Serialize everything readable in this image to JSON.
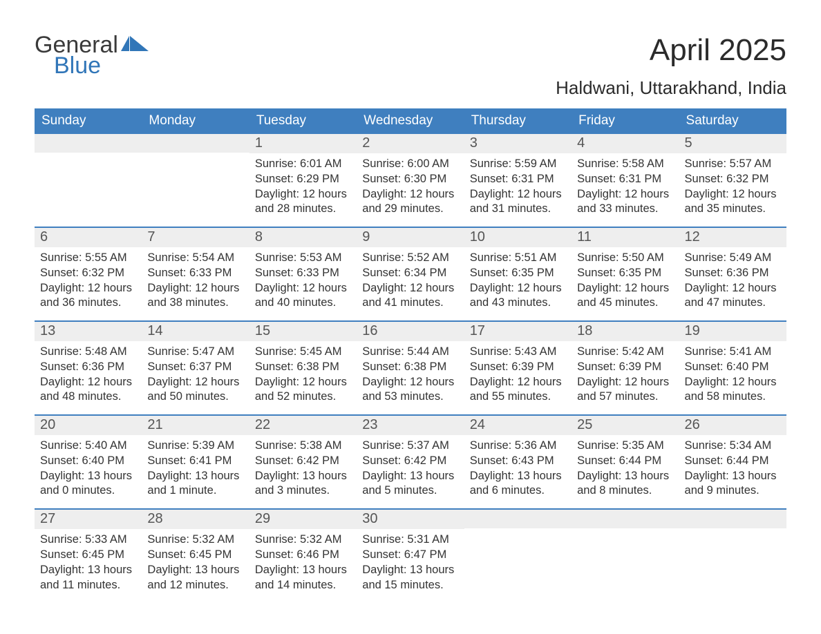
{
  "logo": {
    "word1": "General",
    "word2": "Blue"
  },
  "title": "April 2025",
  "location": "Haldwani, Uttarakhand, India",
  "colors": {
    "header_bg": "#3f7fbf",
    "header_text": "#ffffff",
    "daynum_bg": "#eeeeee",
    "rule": "#3f7fbf",
    "logo_blue": "#3176b8",
    "body_text": "#333333",
    "page_bg": "#ffffff"
  },
  "fonts": {
    "title_size_pt": 33,
    "location_size_pt": 20,
    "header_size_pt": 14,
    "daynum_size_pt": 15,
    "body_size_pt": 12
  },
  "columns": [
    "Sunday",
    "Monday",
    "Tuesday",
    "Wednesday",
    "Thursday",
    "Friday",
    "Saturday"
  ],
  "weeks": [
    [
      {
        "n": "",
        "sunrise": "",
        "sunset": "",
        "daylight": ""
      },
      {
        "n": "",
        "sunrise": "",
        "sunset": "",
        "daylight": ""
      },
      {
        "n": "1",
        "sunrise": "Sunrise: 6:01 AM",
        "sunset": "Sunset: 6:29 PM",
        "daylight": "Daylight: 12 hours and 28 minutes."
      },
      {
        "n": "2",
        "sunrise": "Sunrise: 6:00 AM",
        "sunset": "Sunset: 6:30 PM",
        "daylight": "Daylight: 12 hours and 29 minutes."
      },
      {
        "n": "3",
        "sunrise": "Sunrise: 5:59 AM",
        "sunset": "Sunset: 6:31 PM",
        "daylight": "Daylight: 12 hours and 31 minutes."
      },
      {
        "n": "4",
        "sunrise": "Sunrise: 5:58 AM",
        "sunset": "Sunset: 6:31 PM",
        "daylight": "Daylight: 12 hours and 33 minutes."
      },
      {
        "n": "5",
        "sunrise": "Sunrise: 5:57 AM",
        "sunset": "Sunset: 6:32 PM",
        "daylight": "Daylight: 12 hours and 35 minutes."
      }
    ],
    [
      {
        "n": "6",
        "sunrise": "Sunrise: 5:55 AM",
        "sunset": "Sunset: 6:32 PM",
        "daylight": "Daylight: 12 hours and 36 minutes."
      },
      {
        "n": "7",
        "sunrise": "Sunrise: 5:54 AM",
        "sunset": "Sunset: 6:33 PM",
        "daylight": "Daylight: 12 hours and 38 minutes."
      },
      {
        "n": "8",
        "sunrise": "Sunrise: 5:53 AM",
        "sunset": "Sunset: 6:33 PM",
        "daylight": "Daylight: 12 hours and 40 minutes."
      },
      {
        "n": "9",
        "sunrise": "Sunrise: 5:52 AM",
        "sunset": "Sunset: 6:34 PM",
        "daylight": "Daylight: 12 hours and 41 minutes."
      },
      {
        "n": "10",
        "sunrise": "Sunrise: 5:51 AM",
        "sunset": "Sunset: 6:35 PM",
        "daylight": "Daylight: 12 hours and 43 minutes."
      },
      {
        "n": "11",
        "sunrise": "Sunrise: 5:50 AM",
        "sunset": "Sunset: 6:35 PM",
        "daylight": "Daylight: 12 hours and 45 minutes."
      },
      {
        "n": "12",
        "sunrise": "Sunrise: 5:49 AM",
        "sunset": "Sunset: 6:36 PM",
        "daylight": "Daylight: 12 hours and 47 minutes."
      }
    ],
    [
      {
        "n": "13",
        "sunrise": "Sunrise: 5:48 AM",
        "sunset": "Sunset: 6:36 PM",
        "daylight": "Daylight: 12 hours and 48 minutes."
      },
      {
        "n": "14",
        "sunrise": "Sunrise: 5:47 AM",
        "sunset": "Sunset: 6:37 PM",
        "daylight": "Daylight: 12 hours and 50 minutes."
      },
      {
        "n": "15",
        "sunrise": "Sunrise: 5:45 AM",
        "sunset": "Sunset: 6:38 PM",
        "daylight": "Daylight: 12 hours and 52 minutes."
      },
      {
        "n": "16",
        "sunrise": "Sunrise: 5:44 AM",
        "sunset": "Sunset: 6:38 PM",
        "daylight": "Daylight: 12 hours and 53 minutes."
      },
      {
        "n": "17",
        "sunrise": "Sunrise: 5:43 AM",
        "sunset": "Sunset: 6:39 PM",
        "daylight": "Daylight: 12 hours and 55 minutes."
      },
      {
        "n": "18",
        "sunrise": "Sunrise: 5:42 AM",
        "sunset": "Sunset: 6:39 PM",
        "daylight": "Daylight: 12 hours and 57 minutes."
      },
      {
        "n": "19",
        "sunrise": "Sunrise: 5:41 AM",
        "sunset": "Sunset: 6:40 PM",
        "daylight": "Daylight: 12 hours and 58 minutes."
      }
    ],
    [
      {
        "n": "20",
        "sunrise": "Sunrise: 5:40 AM",
        "sunset": "Sunset: 6:40 PM",
        "daylight": "Daylight: 13 hours and 0 minutes."
      },
      {
        "n": "21",
        "sunrise": "Sunrise: 5:39 AM",
        "sunset": "Sunset: 6:41 PM",
        "daylight": "Daylight: 13 hours and 1 minute."
      },
      {
        "n": "22",
        "sunrise": "Sunrise: 5:38 AM",
        "sunset": "Sunset: 6:42 PM",
        "daylight": "Daylight: 13 hours and 3 minutes."
      },
      {
        "n": "23",
        "sunrise": "Sunrise: 5:37 AM",
        "sunset": "Sunset: 6:42 PM",
        "daylight": "Daylight: 13 hours and 5 minutes."
      },
      {
        "n": "24",
        "sunrise": "Sunrise: 5:36 AM",
        "sunset": "Sunset: 6:43 PM",
        "daylight": "Daylight: 13 hours and 6 minutes."
      },
      {
        "n": "25",
        "sunrise": "Sunrise: 5:35 AM",
        "sunset": "Sunset: 6:44 PM",
        "daylight": "Daylight: 13 hours and 8 minutes."
      },
      {
        "n": "26",
        "sunrise": "Sunrise: 5:34 AM",
        "sunset": "Sunset: 6:44 PM",
        "daylight": "Daylight: 13 hours and 9 minutes."
      }
    ],
    [
      {
        "n": "27",
        "sunrise": "Sunrise: 5:33 AM",
        "sunset": "Sunset: 6:45 PM",
        "daylight": "Daylight: 13 hours and 11 minutes."
      },
      {
        "n": "28",
        "sunrise": "Sunrise: 5:32 AM",
        "sunset": "Sunset: 6:45 PM",
        "daylight": "Daylight: 13 hours and 12 minutes."
      },
      {
        "n": "29",
        "sunrise": "Sunrise: 5:32 AM",
        "sunset": "Sunset: 6:46 PM",
        "daylight": "Daylight: 13 hours and 14 minutes."
      },
      {
        "n": "30",
        "sunrise": "Sunrise: 5:31 AM",
        "sunset": "Sunset: 6:47 PM",
        "daylight": "Daylight: 13 hours and 15 minutes."
      },
      {
        "n": "",
        "sunrise": "",
        "sunset": "",
        "daylight": ""
      },
      {
        "n": "",
        "sunrise": "",
        "sunset": "",
        "daylight": ""
      },
      {
        "n": "",
        "sunrise": "",
        "sunset": "",
        "daylight": ""
      }
    ]
  ]
}
